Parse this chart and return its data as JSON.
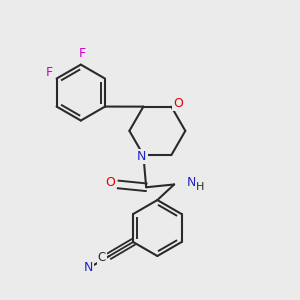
{
  "background_color": "#ebebeb",
  "bond_color": "#2a2a2a",
  "atom_colors": {
    "O": "#dd0000",
    "N": "#2222cc",
    "F": "#cc00cc",
    "C": "#2a2a2a"
  },
  "figsize": [
    3.0,
    3.0
  ],
  "dpi": 100
}
